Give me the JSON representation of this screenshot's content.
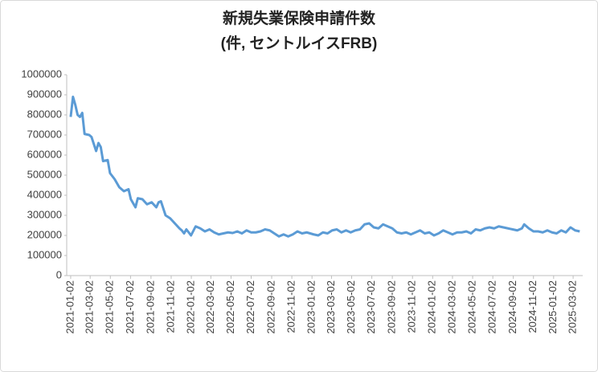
{
  "chart_data": {
    "type": "line",
    "title": [
      "新規失業保険申請件数",
      "(件, セントルイスFRB)"
    ],
    "x": [
      "2021-01-02",
      "2021-01-09",
      "2021-01-16",
      "2021-01-23",
      "2021-01-30",
      "2021-02-06",
      "2021-02-13",
      "2021-02-27",
      "2021-03-06",
      "2021-03-20",
      "2021-03-27",
      "2021-04-03",
      "2021-04-10",
      "2021-04-24",
      "2021-05-01",
      "2021-05-15",
      "2021-05-29",
      "2021-06-12",
      "2021-06-26",
      "2021-07-03",
      "2021-07-17",
      "2021-07-24",
      "2021-08-07",
      "2021-08-21",
      "2021-09-04",
      "2021-09-18",
      "2021-09-25",
      "2021-10-02",
      "2021-10-16",
      "2021-10-30",
      "2021-11-13",
      "2021-11-27",
      "2021-12-04",
      "2021-12-11",
      "2021-12-18",
      "2022-01-01",
      "2022-01-15",
      "2022-01-29",
      "2022-02-12",
      "2022-02-26",
      "2022-03-12",
      "2022-03-26",
      "2022-04-09",
      "2022-04-23",
      "2022-05-07",
      "2022-05-21",
      "2022-06-04",
      "2022-06-18",
      "2022-07-02",
      "2022-07-16",
      "2022-07-30",
      "2022-08-13",
      "2022-08-27",
      "2022-09-10",
      "2022-09-24",
      "2022-10-08",
      "2022-10-22",
      "2022-11-05",
      "2022-11-19",
      "2022-12-03",
      "2022-12-17",
      "2023-01-07",
      "2023-01-21",
      "2023-02-04",
      "2023-02-18",
      "2023-03-04",
      "2023-03-18",
      "2023-04-01",
      "2023-04-15",
      "2023-04-29",
      "2023-05-13",
      "2023-05-27",
      "2023-06-10",
      "2023-06-24",
      "2023-07-08",
      "2023-07-22",
      "2023-08-05",
      "2023-08-19",
      "2023-09-02",
      "2023-09-16",
      "2023-09-30",
      "2023-10-14",
      "2023-10-28",
      "2023-11-11",
      "2023-11-25",
      "2023-12-09",
      "2023-12-23",
      "2024-01-06",
      "2024-01-20",
      "2024-02-03",
      "2024-02-17",
      "2024-03-02",
      "2024-03-16",
      "2024-03-30",
      "2024-04-13",
      "2024-04-27",
      "2024-05-11",
      "2024-05-25",
      "2024-06-08",
      "2024-06-22",
      "2024-07-06",
      "2024-07-20",
      "2024-08-03",
      "2024-08-17",
      "2024-08-31",
      "2024-09-14",
      "2024-09-28",
      "2024-10-05",
      "2024-10-19",
      "2024-11-02",
      "2024-11-16",
      "2024-11-30",
      "2024-12-14",
      "2024-12-28",
      "2025-01-11",
      "2025-01-25",
      "2025-02-08",
      "2025-02-22",
      "2025-03-08",
      "2025-03-22"
    ],
    "series": [
      {
        "name": "新規失業保険申請件数",
        "color": "#5b9bd5",
        "values": [
          790000,
          890000,
          850000,
          800000,
          790000,
          810000,
          705000,
          700000,
          690000,
          620000,
          660000,
          640000,
          570000,
          575000,
          510000,
          480000,
          440000,
          420000,
          430000,
          380000,
          340000,
          385000,
          380000,
          355000,
          365000,
          340000,
          365000,
          370000,
          300000,
          285000,
          260000,
          235000,
          225000,
          210000,
          230000,
          200000,
          245000,
          235000,
          220000,
          230000,
          215000,
          205000,
          210000,
          215000,
          212000,
          220000,
          210000,
          225000,
          215000,
          215000,
          220000,
          230000,
          225000,
          210000,
          195000,
          205000,
          195000,
          205000,
          220000,
          210000,
          215000,
          205000,
          200000,
          215000,
          210000,
          225000,
          230000,
          215000,
          225000,
          215000,
          225000,
          230000,
          255000,
          260000,
          240000,
          235000,
          255000,
          245000,
          235000,
          215000,
          210000,
          215000,
          205000,
          215000,
          225000,
          210000,
          215000,
          200000,
          210000,
          225000,
          215000,
          205000,
          215000,
          215000,
          220000,
          210000,
          230000,
          225000,
          235000,
          240000,
          235000,
          245000,
          240000,
          235000,
          230000,
          225000,
          235000,
          255000,
          235000,
          220000,
          220000,
          215000,
          225000,
          215000,
          210000,
          225000,
          215000,
          240000,
          225000,
          220000
        ]
      }
    ],
    "xlim": [
      "2020-12-21",
      "2025-03-31"
    ],
    "xticks": [
      "2021-01-02",
      "2021-03-02",
      "2021-05-02",
      "2021-07-02",
      "2021-09-02",
      "2021-11-02",
      "2022-01-02",
      "2022-03-02",
      "2022-05-02",
      "2022-07-02",
      "2022-09-02",
      "2022-11-02",
      "2023-01-02",
      "2023-03-02",
      "2023-05-02",
      "2023-07-02",
      "2023-09-02",
      "2023-11-02",
      "2024-01-02",
      "2024-03-02",
      "2024-05-02",
      "2024-07-02",
      "2024-09-02",
      "2024-11-02",
      "2025-01-02",
      "2025-03-02"
    ],
    "ylim": [
      0,
      1000000
    ],
    "yticks": [
      0,
      100000,
      200000,
      300000,
      400000,
      500000,
      600000,
      700000,
      800000,
      900000,
      1000000
    ]
  }
}
